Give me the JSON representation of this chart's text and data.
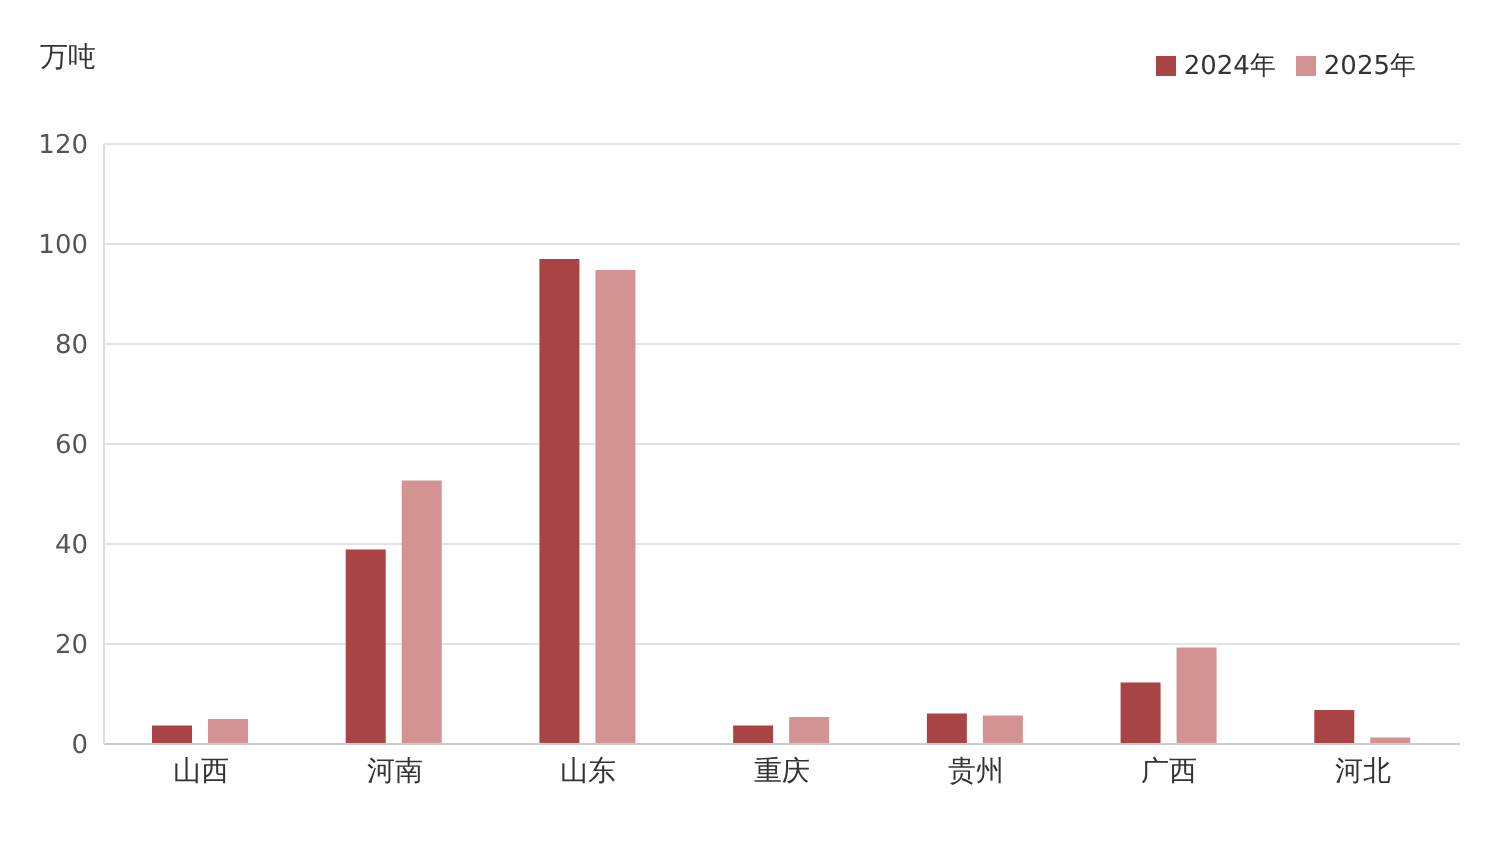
{
  "chart_data": {
    "type": "bar",
    "ylabel": "万吨",
    "categories": [
      "山西",
      "河南",
      "山东",
      "重庆",
      "贵州",
      "广西",
      "河北"
    ],
    "series": [
      {
        "name": "2024年",
        "color": "#a84444",
        "values": [
          3.7,
          38.9,
          97,
          3.7,
          6.1,
          12.3,
          6.8
        ]
      },
      {
        "name": "2025年",
        "color": "#d39393",
        "values": [
          5,
          52.7,
          94.8,
          5.4,
          5.7,
          19.3,
          1.3
        ]
      }
    ],
    "ylim": [
      0,
      120
    ],
    "yticks": [
      0,
      20,
      40,
      60,
      80,
      100,
      120
    ],
    "grid": "y",
    "legend": "top right"
  }
}
